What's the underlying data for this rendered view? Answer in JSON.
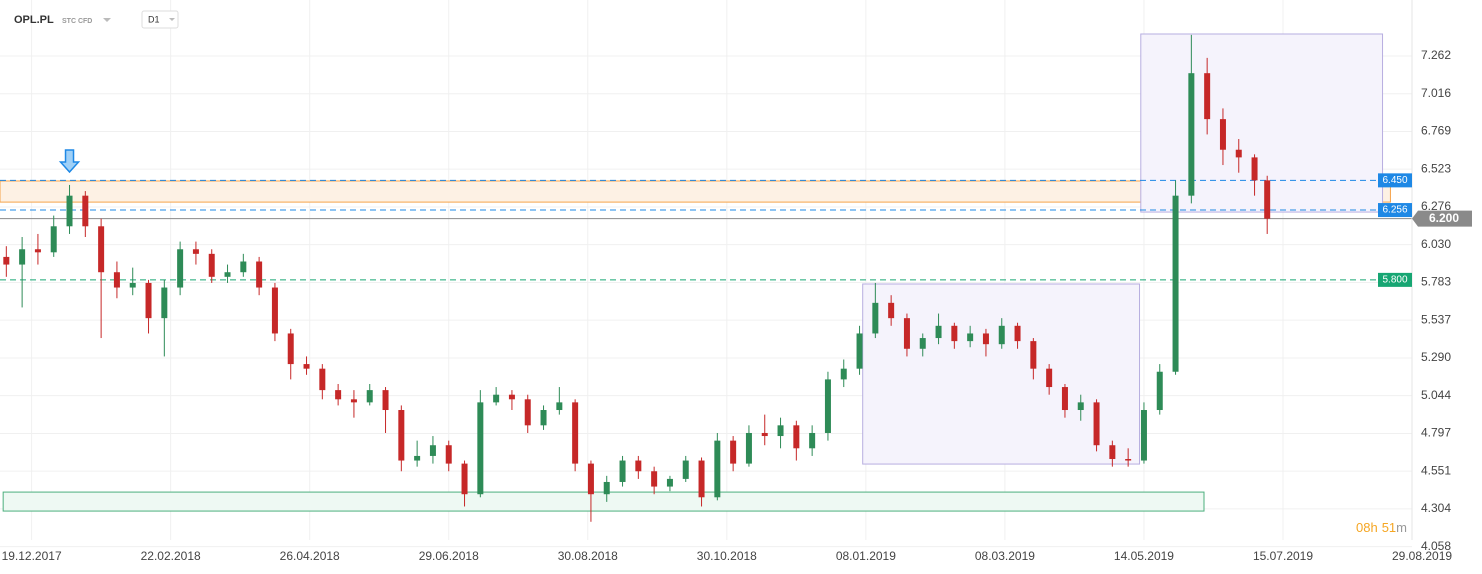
{
  "header": {
    "symbol": "OPL.PL",
    "instrument": "STC CFD",
    "interval": "D1"
  },
  "countdown": {
    "hours": "08",
    "hours_unit": "h",
    "minutes": "51",
    "minutes_unit": "m"
  },
  "chart_data": {
    "type": "candlestick",
    "up_color": "#2e8b57",
    "down_color": "#c62828",
    "xlim": [
      -10,
      446
    ],
    "xticks": [
      {
        "value": 0,
        "label": "19.12.2017"
      },
      {
        "value": 44,
        "label": "22.02.2018"
      },
      {
        "value": 88,
        "label": "26.04.2018"
      },
      {
        "value": 132,
        "label": "29.06.2018"
      },
      {
        "value": 176,
        "label": "30.08.2018"
      },
      {
        "value": 220,
        "label": "30.10.2018"
      },
      {
        "value": 264,
        "label": "08.01.2019"
      },
      {
        "value": 308,
        "label": "08.03.2019"
      },
      {
        "value": 352,
        "label": "14.05.2019"
      },
      {
        "value": 396,
        "label": "15.07.2019"
      },
      {
        "value": 440,
        "label": "29.08.2019"
      }
    ],
    "ylim": [
      4.101,
      7.628
    ],
    "yticks": [
      7.262,
      7.016,
      6.769,
      6.523,
      6.276,
      {
        "value": 6.03,
        "label": "6.030"
      },
      5.783,
      5.537,
      {
        "value": 5.29,
        "label": "5.290"
      },
      5.044,
      4.797,
      4.551,
      4.304,
      4.058
    ],
    "grid": true,
    "x": [
      -8,
      -3,
      2,
      7,
      12,
      17,
      22,
      27,
      32,
      37,
      42,
      47,
      52,
      57,
      62,
      67,
      72,
      77,
      82,
      87,
      92,
      97,
      102,
      107,
      112,
      117,
      122,
      127,
      132,
      137,
      142,
      147,
      152,
      157,
      162,
      167,
      172,
      177,
      182,
      187,
      192,
      197,
      202,
      207,
      212,
      217,
      222,
      227,
      232,
      237,
      242,
      247,
      252,
      257,
      262,
      267,
      272,
      277,
      282,
      287,
      292,
      297,
      302,
      307,
      312,
      317,
      322,
      327,
      332,
      337,
      342,
      347,
      352,
      357,
      362,
      367,
      372,
      377,
      382,
      387,
      391
    ],
    "ohlc": [
      [
        5.95,
        6.02,
        5.82,
        5.9
      ],
      [
        5.9,
        6.08,
        5.62,
        6.0
      ],
      [
        6.0,
        6.1,
        5.9,
        5.98
      ],
      [
        5.98,
        6.22,
        5.95,
        6.15
      ],
      [
        6.15,
        6.42,
        6.1,
        6.35
      ],
      [
        6.35,
        6.38,
        6.08,
        6.15
      ],
      [
        6.15,
        6.2,
        5.42,
        5.85
      ],
      [
        5.85,
        5.92,
        5.68,
        5.75
      ],
      [
        5.75,
        5.88,
        5.7,
        5.78
      ],
      [
        5.78,
        5.8,
        5.45,
        5.55
      ],
      [
        5.55,
        5.8,
        5.3,
        5.75
      ],
      [
        5.75,
        6.05,
        5.7,
        6.0
      ],
      [
        6.0,
        6.05,
        5.9,
        5.97
      ],
      [
        5.97,
        6.0,
        5.78,
        5.82
      ],
      [
        5.82,
        5.9,
        5.78,
        5.85
      ],
      [
        5.85,
        5.97,
        5.82,
        5.92
      ],
      [
        5.92,
        5.95,
        5.7,
        5.75
      ],
      [
        5.75,
        5.78,
        5.4,
        5.45
      ],
      [
        5.45,
        5.48,
        5.15,
        5.25
      ],
      [
        5.25,
        5.3,
        5.18,
        5.22
      ],
      [
        5.22,
        5.25,
        5.02,
        5.08
      ],
      [
        5.08,
        5.12,
        4.98,
        5.02
      ],
      [
        5.02,
        5.08,
        4.9,
        5.0
      ],
      [
        5.0,
        5.12,
        4.98,
        5.08
      ],
      [
        5.08,
        5.1,
        4.8,
        4.95
      ],
      [
        4.95,
        4.98,
        4.55,
        4.62
      ],
      [
        4.62,
        4.75,
        4.58,
        4.65
      ],
      [
        4.65,
        4.78,
        4.6,
        4.72
      ],
      [
        4.72,
        4.75,
        4.55,
        4.6
      ],
      [
        4.6,
        4.62,
        4.32,
        4.4
      ],
      [
        4.4,
        5.08,
        4.38,
        5.0
      ],
      [
        5.0,
        5.1,
        4.98,
        5.05
      ],
      [
        5.05,
        5.08,
        4.95,
        5.02
      ],
      [
        5.02,
        5.05,
        4.8,
        4.85
      ],
      [
        4.85,
        4.98,
        4.82,
        4.95
      ],
      [
        4.95,
        5.1,
        4.92,
        5.0
      ],
      [
        5.0,
        5.02,
        4.55,
        4.6
      ],
      [
        4.6,
        4.62,
        4.22,
        4.4
      ],
      [
        4.4,
        4.52,
        4.35,
        4.48
      ],
      [
        4.48,
        4.65,
        4.45,
        4.62
      ],
      [
        4.62,
        4.65,
        4.5,
        4.55
      ],
      [
        4.55,
        4.58,
        4.4,
        4.45
      ],
      [
        4.45,
        4.52,
        4.42,
        4.5
      ],
      [
        4.5,
        4.65,
        4.48,
        4.62
      ],
      [
        4.62,
        4.64,
        4.32,
        4.38
      ],
      [
        4.38,
        4.8,
        4.36,
        4.75
      ],
      [
        4.75,
        4.78,
        4.55,
        4.6
      ],
      [
        4.6,
        4.85,
        4.58,
        4.8
      ],
      [
        4.8,
        4.92,
        4.72,
        4.78
      ],
      [
        4.78,
        4.9,
        4.7,
        4.85
      ],
      [
        4.85,
        4.88,
        4.62,
        4.7
      ],
      [
        4.7,
        4.85,
        4.65,
        4.8
      ],
      [
        4.8,
        5.2,
        4.75,
        5.15
      ],
      [
        5.15,
        5.28,
        5.1,
        5.22
      ],
      [
        5.22,
        5.5,
        5.18,
        5.45
      ],
      [
        5.45,
        5.78,
        5.42,
        5.65
      ],
      [
        5.65,
        5.7,
        5.5,
        5.55
      ],
      [
        5.55,
        5.58,
        5.3,
        5.35
      ],
      [
        5.35,
        5.45,
        5.3,
        5.42
      ],
      [
        5.42,
        5.58,
        5.38,
        5.5
      ],
      [
        5.5,
        5.52,
        5.35,
        5.4
      ],
      [
        5.4,
        5.5,
        5.36,
        5.45
      ],
      [
        5.45,
        5.48,
        5.3,
        5.38
      ],
      [
        5.38,
        5.55,
        5.35,
        5.5
      ],
      [
        5.5,
        5.52,
        5.35,
        5.4
      ],
      [
        5.4,
        5.42,
        5.15,
        5.22
      ],
      [
        5.22,
        5.25,
        5.05,
        5.1
      ],
      [
        5.1,
        5.12,
        4.9,
        4.95
      ],
      [
        4.95,
        5.05,
        4.88,
        5.0
      ],
      [
        5.0,
        5.02,
        4.68,
        4.72
      ],
      [
        4.72,
        4.75,
        4.58,
        4.63
      ],
      [
        4.63,
        4.7,
        4.58,
        4.62
      ],
      [
        4.62,
        5.0,
        4.6,
        4.95
      ],
      [
        4.95,
        5.25,
        4.92,
        5.2
      ],
      [
        5.2,
        6.45,
        5.18,
        6.35
      ],
      [
        6.35,
        7.4,
        6.3,
        7.15
      ],
      [
        7.15,
        7.25,
        6.75,
        6.85
      ],
      [
        6.85,
        6.92,
        6.55,
        6.65
      ],
      [
        6.65,
        6.72,
        6.5,
        6.6
      ],
      [
        6.6,
        6.62,
        6.35,
        6.45
      ],
      [
        6.45,
        6.48,
        6.1,
        6.2
      ]
    ],
    "zones": [
      {
        "from": 6.308,
        "to": 6.446,
        "x": [
          -10,
          430
        ],
        "color": "#f5a34a",
        "fill": "#fdf1e4"
      },
      {
        "from": 4.29,
        "to": 4.414,
        "x": [
          -9,
          371
        ],
        "color": "#4caf7d",
        "fill": "#eef9f3"
      },
      {
        "from": 4.597,
        "to": 5.773,
        "x": [
          263,
          350.6
        ],
        "color": "#b7aee0",
        "fill": "#f5f3fc"
      },
      {
        "from": 6.243,
        "to": 7.406,
        "x": [
          351,
          427.5
        ],
        "color": "#b7aee0",
        "fill": "#f5f3fc"
      }
    ],
    "levels": [
      {
        "value": 6.45,
        "label": "6.450",
        "color": "#1e88e5"
      },
      {
        "value": 6.256,
        "label": "6.256",
        "color": "#1e88e5"
      },
      {
        "value": 5.8,
        "label": "5.800",
        "color": "#17a673"
      }
    ],
    "last": {
      "value": 6.2,
      "label": "6.200",
      "color": "#8a8a8a"
    },
    "signal_x": 12
  }
}
